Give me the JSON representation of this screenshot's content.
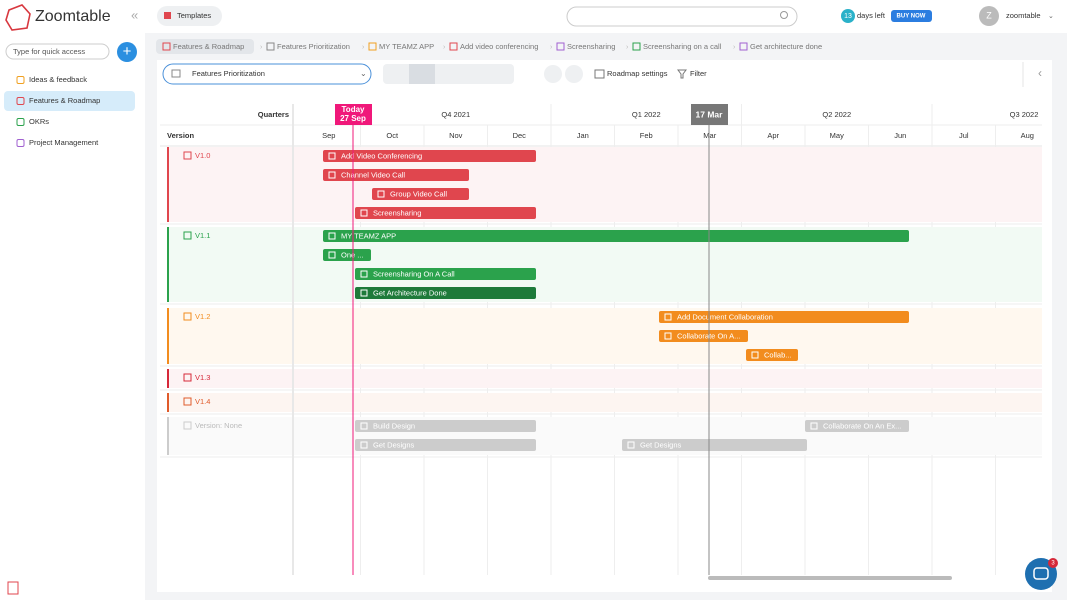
{
  "sidebar": {
    "logo": "Zoomtable",
    "search_placeholder": "Type for quick access",
    "nav": [
      "Ideas & feedback",
      "Features & Roadmap",
      "OKRs",
      "Project Management"
    ]
  },
  "topbar": {
    "templates": "Templates",
    "trial_days": 13,
    "trial_text": "days left",
    "buy_now": "BUY NOW",
    "avatar": "Z",
    "user": "zoomtable"
  },
  "breadcrumbs": [
    "Features & Roadmap",
    "Features Prioritization",
    "MY TEAMZ APP",
    "Add video conferencing",
    "Screensharing",
    "Screensharing on a call",
    "Get architecture done"
  ],
  "toolbar": {
    "view": "Features Prioritization",
    "roadmap_settings": "Roadmap settings",
    "filter": "Filter"
  },
  "timeline": {
    "quarters_header": "Quarters",
    "version_header": "Version",
    "today_label": "Today",
    "today_date": "27 Sep",
    "marker": "17 Mar",
    "quarters": [
      "Q4 2021",
      "Q1 2022",
      "Q2 2022",
      "Q3 2022"
    ],
    "months": [
      "Sep",
      "Oct",
      "Nov",
      "Dec",
      "Jan",
      "Feb",
      "Mar",
      "Apr",
      "May",
      "Jun",
      "Jul",
      "Aug"
    ]
  },
  "groups": [
    {
      "name": "V1.0",
      "items": [
        "Add Video Conferencing",
        "Channel Video Call",
        "Group Video Call",
        "Screensharing"
      ]
    },
    {
      "name": "V1.1",
      "items": [
        "MY TEAMZ APP",
        "One ...",
        "Screensharing On A Call",
        "Get Architecture Done"
      ]
    },
    {
      "name": "V1.2",
      "items": [
        "Add Document Collaboration",
        "Collaborate On A...",
        "Collab..."
      ]
    },
    {
      "name": "V1.3",
      "items": []
    },
    {
      "name": "V1.4",
      "items": []
    },
    {
      "name": "Version: None",
      "items": [
        "Build Design",
        "Collaborate On An Ex...",
        "Get Designs",
        "Get Designs"
      ]
    }
  ],
  "notification_count": 3
}
